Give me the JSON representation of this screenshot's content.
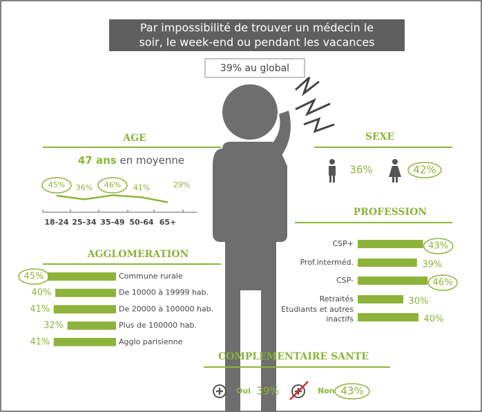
{
  "title": [
    "Par impossibilité de trouver un médecin le",
    "soir, le week-end ou pendant les vacances"
  ],
  "global": "39% au global",
  "age": {
    "title": "AGE",
    "average": "47 ans",
    "average_suffix": "en moyenne",
    "categories": [
      "18-24",
      "25-34",
      "35-49",
      "50-64",
      "65+"
    ],
    "values": [
      45,
      36,
      46,
      41,
      29
    ],
    "value_labels": [
      "45%",
      "36%",
      "46%",
      "41%",
      "29%"
    ],
    "highlight": [
      true,
      false,
      true,
      false,
      false
    ],
    "color": "#8db33a"
  },
  "sexe": {
    "title": "SEXE",
    "values": [
      36,
      42
    ],
    "value_labels": [
      "36%",
      "42%"
    ],
    "highlight": [
      false,
      true
    ]
  },
  "profession": {
    "title": "PROFESSION",
    "categories": [
      [
        "CSP+"
      ],
      [
        "Prof.interméd."
      ],
      [
        "CSP-"
      ],
      [
        "Retraités"
      ],
      [
        "Etudiants et autres",
        "inactifs"
      ]
    ],
    "values": [
      43,
      39,
      46,
      30,
      40
    ],
    "value_labels": [
      "43%",
      "39%",
      "46%",
      "30%",
      "40%"
    ],
    "highlight": [
      true,
      false,
      true,
      false,
      false
    ],
    "color": "#8db33a"
  },
  "agglomeration": {
    "title": "AGGLOMERATION",
    "categories": [
      "Commune rurale",
      "De 10000 à 19999 hab.",
      "De 20000 à 100000 hab.",
      "Plus de 100000 hab.",
      "Agglo parisienne"
    ],
    "values": [
      45,
      40,
      41,
      32,
      41
    ],
    "value_labels": [
      "45%",
      "40%",
      "41%",
      "32%",
      "41%"
    ],
    "highlight": [
      true,
      false,
      false,
      false,
      false
    ],
    "color": "#8db33a"
  },
  "complementaire": {
    "title": "COMPLEMENTAIRE SANTE",
    "categories": [
      "Oui",
      "Non"
    ],
    "values": [
      39,
      43
    ],
    "value_labels": [
      "39%",
      "43%"
    ],
    "highlight": [
      false,
      true
    ]
  }
}
